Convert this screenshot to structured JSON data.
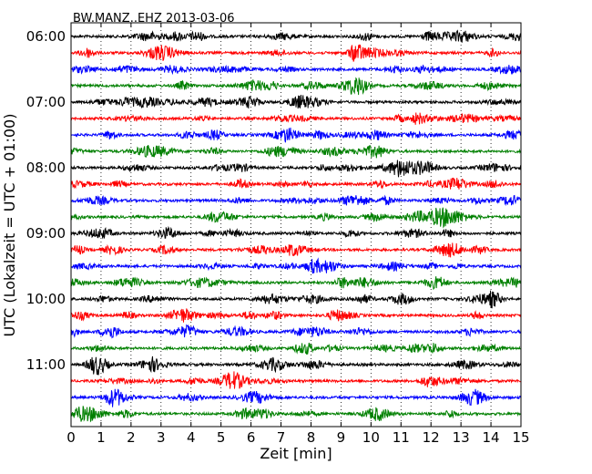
{
  "chart_data": {
    "type": "line",
    "title": "BW.MANZ..EHZ 2013-03-06",
    "xlabel": "Zeit  [min]",
    "ylabel": "UTC (Lokalzeit = UTC + 01:00)",
    "xlim": [
      0,
      15
    ],
    "x_ticks": [
      "0",
      "1",
      "2",
      "3",
      "4",
      "5",
      "6",
      "7",
      "8",
      "9",
      "10",
      "11",
      "12",
      "13",
      "14",
      "15"
    ],
    "y_ticks": [
      "06:00",
      "07:00",
      "08:00",
      "09:00",
      "10:00",
      "11:00"
    ],
    "trace_colors": [
      "#000000",
      "#ff0000",
      "#0000ff",
      "#008000"
    ],
    "traces": [
      {
        "start": "06:00"
      },
      {
        "start": "06:15"
      },
      {
        "start": "06:30"
      },
      {
        "start": "06:45"
      },
      {
        "start": "07:00"
      },
      {
        "start": "07:15"
      },
      {
        "start": "07:30"
      },
      {
        "start": "07:45"
      },
      {
        "start": "08:00"
      },
      {
        "start": "08:15"
      },
      {
        "start": "08:30"
      },
      {
        "start": "08:45"
      },
      {
        "start": "09:00"
      },
      {
        "start": "09:15"
      },
      {
        "start": "09:30"
      },
      {
        "start": "09:45"
      },
      {
        "start": "10:00"
      },
      {
        "start": "10:15"
      },
      {
        "start": "10:30"
      },
      {
        "start": "10:45"
      },
      {
        "start": "11:00"
      },
      {
        "start": "11:15"
      },
      {
        "start": "11:30"
      },
      {
        "start": "11:45"
      }
    ],
    "grid_x": true,
    "grid_style": "dotted"
  }
}
